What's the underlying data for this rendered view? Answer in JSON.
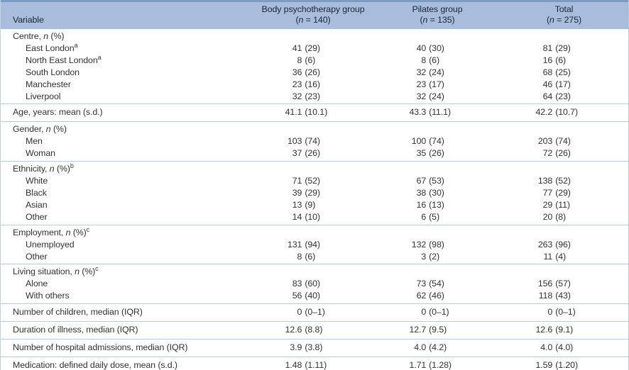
{
  "table": {
    "header": {
      "columns": [
        {
          "label": "Variable",
          "sub": ""
        },
        {
          "label": "Body psychotherapy group",
          "sub": "(*n* = 140)"
        },
        {
          "label": "Pilates group",
          "sub": "(*n* = 135)"
        },
        {
          "label": "Total",
          "sub": "(*n* = 275)"
        }
      ]
    },
    "sections": [
      {
        "title": "Centre, *n* (%)",
        "sup": "",
        "rows": [
          {
            "label": "East London",
            "sup": "a",
            "values": [
              "41 (29)",
              "40 (30)",
              "81 (29)"
            ]
          },
          {
            "label": "North East London",
            "sup": "a",
            "values": [
              "8 (6)",
              "8 (6)",
              "16 (6)"
            ]
          },
          {
            "label": "South London",
            "sup": "",
            "values": [
              "36 (26)",
              "32 (24)",
              "68 (25)"
            ]
          },
          {
            "label": "Manchester",
            "sup": "",
            "values": [
              "23 (16)",
              "23 (17)",
              "46 (17)"
            ]
          },
          {
            "label": "Liverpool",
            "sup": "",
            "values": [
              "32 (23)",
              "32 (24)",
              "64 (23)"
            ]
          }
        ]
      },
      {
        "title": "Age, years: mean (s.d.)",
        "sup": "",
        "values": [
          "41.1 (10.1)",
          "43.3 (11.1)",
          "42.2 (10.7)"
        ],
        "rows": []
      },
      {
        "title": "Gender, *n* (%)",
        "sup": "",
        "rows": [
          {
            "label": "Men",
            "sup": "",
            "values": [
              "103 (74)",
              "100 (74)",
              "203 (74)"
            ]
          },
          {
            "label": "Woman",
            "sup": "",
            "values": [
              "37 (26)",
              "35 (26)",
              "72 (26)"
            ]
          }
        ]
      },
      {
        "title": "Ethnicity, *n* (%)",
        "sup": "b",
        "rows": [
          {
            "label": "White",
            "sup": "",
            "values": [
              "71 (52)",
              "67 (53)",
              "138 (52)"
            ]
          },
          {
            "label": "Black",
            "sup": "",
            "values": [
              "39 (29)",
              "38 (30)",
              "77 (29)"
            ]
          },
          {
            "label": "Asian",
            "sup": "",
            "values": [
              "13 (9)",
              "16 (13)",
              "29 (11)"
            ]
          },
          {
            "label": "Other",
            "sup": "",
            "values": [
              "14 (10)",
              "6 (5)",
              "20 (8)"
            ]
          }
        ]
      },
      {
        "title": "Employment, *n* (%)",
        "sup": "c",
        "rows": [
          {
            "label": "Unemployed",
            "sup": "",
            "values": [
              "131 (94)",
              "132 (98)",
              "263 (96)"
            ]
          },
          {
            "label": "Other",
            "sup": "",
            "values": [
              "8 (6)",
              "3 (2)",
              "11 (4)"
            ]
          }
        ]
      },
      {
        "title": "Living situation, *n* (%)",
        "sup": "c",
        "rows": [
          {
            "label": "Alone",
            "sup": "",
            "values": [
              "83 (60)",
              "73 (54)",
              "156 (57)"
            ]
          },
          {
            "label": "With others",
            "sup": "",
            "values": [
              "56 (40)",
              "62 (46)",
              "118 (43)"
            ]
          }
        ]
      },
      {
        "title": "Number of children, median (IQR)",
        "sup": "",
        "values": [
          "0 (0–1)",
          "0 (0–1)",
          "0 (0–1)"
        ],
        "rows": []
      },
      {
        "title": "Duration of illness, median (IQR)",
        "sup": "",
        "values": [
          "12.6 (8.8)",
          "12.7 (9.5)",
          "12.6 (9.1)"
        ],
        "rows": []
      },
      {
        "title": "Number of hospital admissions, median (IQR)",
        "sup": "",
        "values": [
          "3.9 (3.8)",
          "4.0 (4.2)",
          "4.0 (4.0)"
        ],
        "rows": []
      },
      {
        "title": "Medication: defined daily dose, mean (s.d.)",
        "sup": "",
        "values": [
          "1.48 (1.11)",
          "1.71 (1.28)",
          "1.59 (1.20)"
        ],
        "rows": []
      }
    ],
    "colors": {
      "top_border": "#7e9bc3",
      "header_bg": "#a7bddb",
      "header_text": "#1c2636",
      "row_line": "#b7cbe0",
      "footer_band": "#dbe3ef",
      "body_text": "#333333"
    }
  }
}
